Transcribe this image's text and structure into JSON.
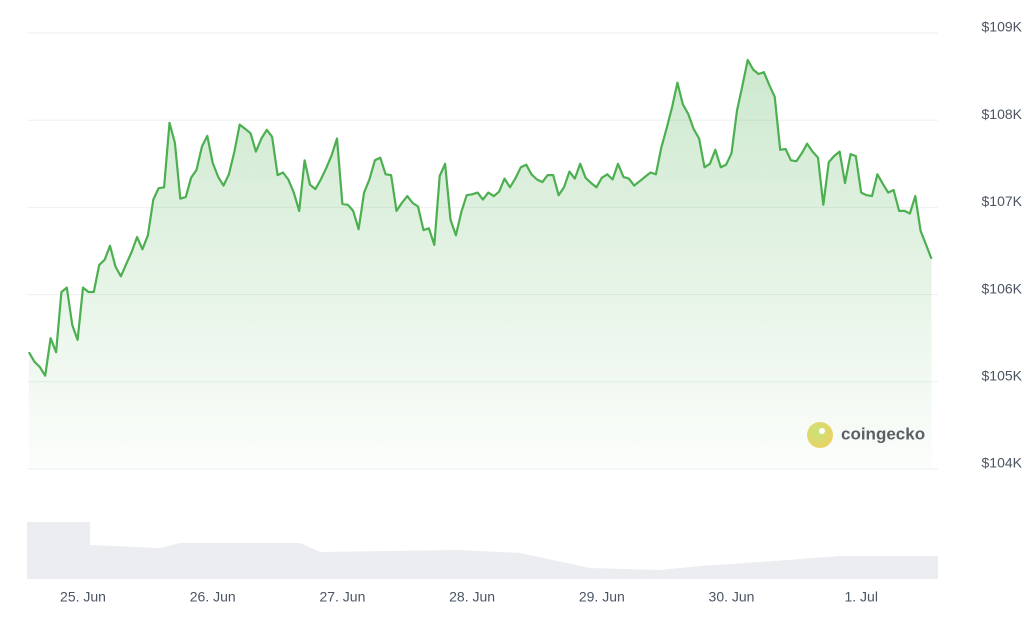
{
  "chart_data": {
    "type": "line",
    "watermark": "coingecko",
    "x": [
      24.583,
      24.625,
      24.667,
      24.708,
      24.75,
      24.792,
      24.833,
      24.875,
      24.917,
      24.958,
      25,
      25.042,
      25.083,
      25.125,
      25.167,
      25.208,
      25.25,
      25.292,
      25.333,
      25.375,
      25.417,
      25.458,
      25.5,
      25.542,
      25.583,
      25.625,
      25.667,
      25.708,
      25.75,
      25.792,
      25.833,
      25.875,
      25.917,
      25.958,
      26,
      26.042,
      26.083,
      26.125,
      26.167,
      26.208,
      26.25,
      26.292,
      26.333,
      26.375,
      26.417,
      26.458,
      26.5,
      26.542,
      26.583,
      26.625,
      26.667,
      26.708,
      26.75,
      26.792,
      26.833,
      26.875,
      26.917,
      26.958,
      27,
      27.042,
      27.083,
      27.125,
      27.167,
      27.208,
      27.25,
      27.292,
      27.333,
      27.375,
      27.417,
      27.458,
      27.5,
      27.542,
      27.583,
      27.625,
      27.667,
      27.708,
      27.75,
      27.792,
      27.833,
      27.875,
      27.917,
      27.958,
      28,
      28.042,
      28.083,
      28.125,
      28.167,
      28.208,
      28.25,
      28.292,
      28.333,
      28.375,
      28.417,
      28.458,
      28.5,
      28.542,
      28.583,
      28.625,
      28.667,
      28.708,
      28.75,
      28.792,
      28.833,
      28.875,
      28.917,
      28.958,
      29,
      29.042,
      29.083,
      29.125,
      29.167,
      29.208,
      29.25,
      29.292,
      29.333,
      29.375,
      29.417,
      29.458,
      29.5,
      29.542,
      29.583,
      29.625,
      29.667,
      29.708,
      29.75,
      29.792,
      29.833,
      29.875,
      29.917,
      29.958,
      30,
      30.042,
      30.083,
      30.125,
      30.167,
      30.208,
      30.25,
      30.292,
      30.333,
      30.375,
      30.417,
      30.458,
      30.5,
      30.542,
      30.583,
      30.625,
      30.667,
      30.708,
      30.75,
      30.792,
      30.833,
      30.875,
      30.917,
      30.958,
      31,
      31.042,
      31.083,
      31.125,
      31.167,
      31.208,
      31.25,
      31.292,
      31.333,
      31.375,
      31.417,
      31.458,
      31.5,
      31.542
    ],
    "series": [
      {
        "color": "#4caf50",
        "values": [
          105340,
          105230,
          105170,
          105070,
          105500,
          105340,
          106030,
          106080,
          105650,
          105480,
          106080,
          106030,
          106030,
          106340,
          106400,
          106560,
          106320,
          106210,
          106350,
          106490,
          106660,
          106520,
          106680,
          107090,
          107220,
          107230,
          107970,
          107740,
          107100,
          107120,
          107340,
          107430,
          107700,
          107820,
          107510,
          107350,
          107250,
          107380,
          107640,
          107950,
          107900,
          107850,
          107640,
          107790,
          107890,
          107810,
          107370,
          107400,
          107320,
          107170,
          106960,
          107540,
          107260,
          107210,
          107320,
          107450,
          107600,
          107790,
          107040,
          107030,
          106960,
          106750,
          107170,
          107320,
          107540,
          107570,
          107380,
          107370,
          106960,
          107050,
          107130,
          107050,
          107010,
          106740,
          106760,
          106570,
          107360,
          107500,
          106860,
          106680,
          106950,
          107140,
          107150,
          107170,
          107090,
          107170,
          107130,
          107180,
          107330,
          107230,
          107330,
          107460,
          107490,
          107380,
          107320,
          107290,
          107370,
          107370,
          107140,
          107230,
          107410,
          107330,
          107500,
          107340,
          107280,
          107230,
          107340,
          107380,
          107320,
          107500,
          107350,
          107330,
          107250,
          107300,
          107350,
          107400,
          107380,
          107680,
          107910,
          108150,
          108430,
          108180,
          108070,
          107900,
          107790,
          107460,
          107500,
          107660,
          107460,
          107490,
          107620,
          108110,
          108390,
          108690,
          108580,
          108530,
          108550,
          108400,
          108270,
          107660,
          107670,
          107540,
          107530,
          107620,
          107730,
          107640,
          107570,
          107030,
          107520,
          107590,
          107640,
          107280,
          107610,
          107590,
          107170,
          107140,
          107130,
          107380,
          107270,
          107170,
          107200,
          106960,
          106960,
          106930,
          107130,
          106730,
          106570,
          106410
        ]
      }
    ],
    "xlim": [
      24.568,
      31.592
    ],
    "xticks": [
      {
        "value": 25,
        "label": "25. Jun"
      },
      {
        "value": 26,
        "label": "26. Jun"
      },
      {
        "value": 27,
        "label": "27. Jun"
      },
      {
        "value": 28,
        "label": "28. Jun"
      },
      {
        "value": 29,
        "label": "29. Jun"
      },
      {
        "value": 30,
        "label": "30. Jun"
      },
      {
        "value": 31,
        "label": "1. Jul"
      }
    ],
    "ylim": [
      104000,
      109000
    ],
    "yticks": [
      {
        "value": 104000,
        "label": "$104K"
      },
      {
        "value": 105000,
        "label": "$105K"
      },
      {
        "value": 106000,
        "label": "$106K"
      },
      {
        "value": 107000,
        "label": "$107K"
      },
      {
        "value": 108000,
        "label": "$108K"
      },
      {
        "value": 109000,
        "label": "$109K"
      }
    ],
    "grid": true
  }
}
